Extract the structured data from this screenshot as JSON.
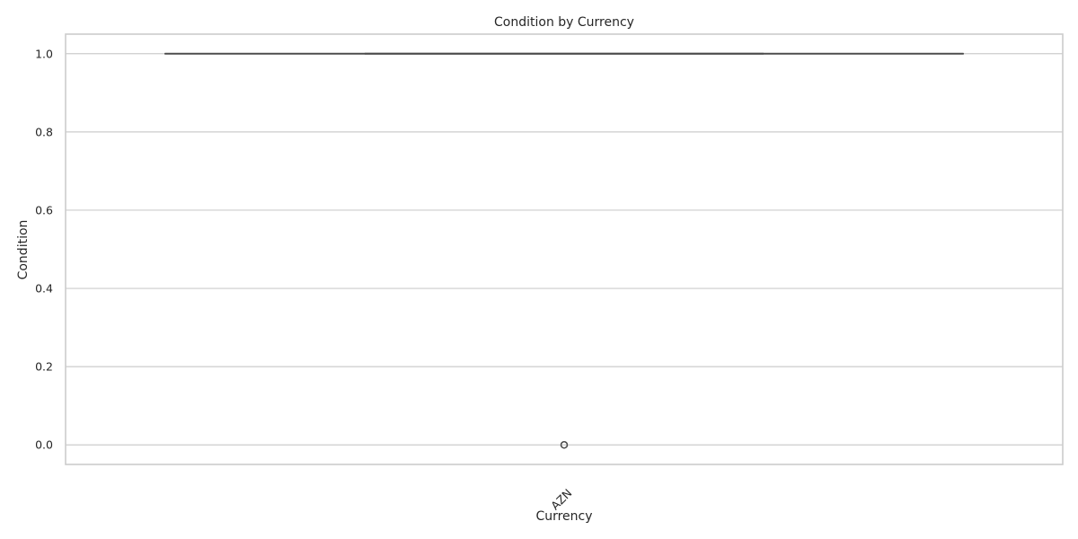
{
  "chart_data": {
    "type": "box",
    "title": "Condition by Currency",
    "xlabel": "Currency",
    "ylabel": "Condition",
    "categories": [
      "AZN"
    ],
    "ylim": [
      -0.05,
      1.05
    ],
    "yticks": [
      0.0,
      0.2,
      0.4,
      0.6,
      0.8,
      1.0
    ],
    "ytick_labels": [
      "0.0",
      "0.2",
      "0.4",
      "0.6",
      "0.8",
      "1.0"
    ],
    "boxes": [
      {
        "category": "AZN",
        "q1": 1.0,
        "median": 1.0,
        "q3": 1.0,
        "whisker_low": 1.0,
        "whisker_high": 1.0,
        "outliers": [
          0.0,
          0.0,
          0.0
        ]
      }
    ],
    "grid": true,
    "colors": {
      "box": "#4d4d4d",
      "grid": "#cccccc"
    }
  }
}
